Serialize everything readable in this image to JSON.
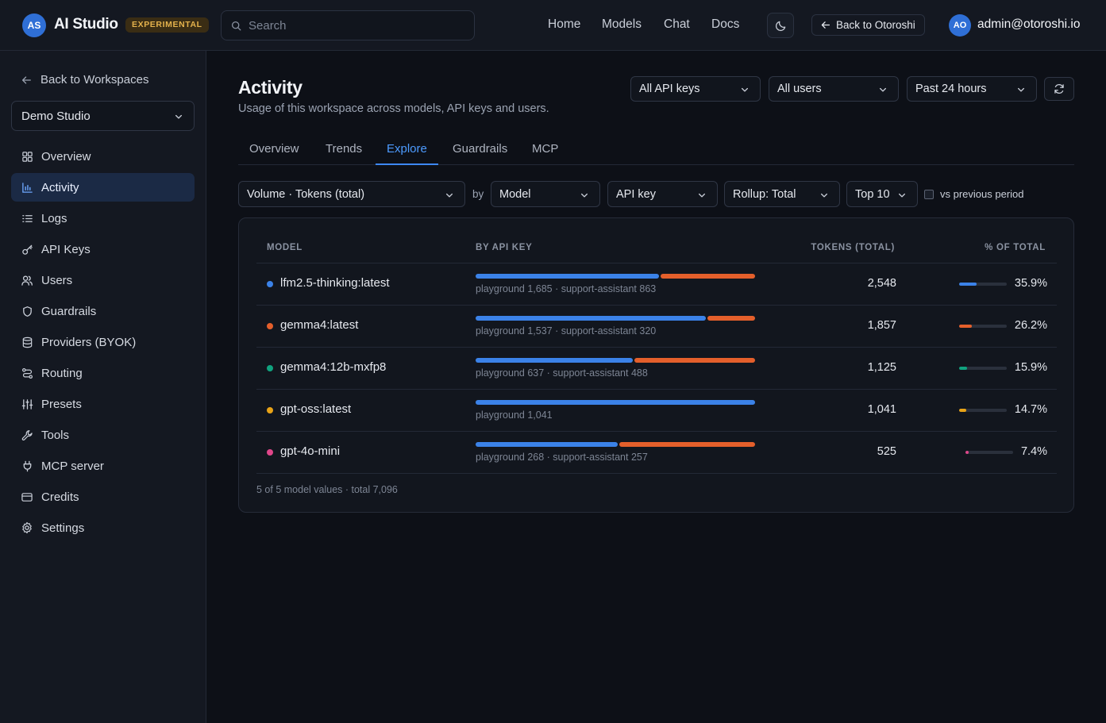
{
  "header": {
    "logo_initials": "AS",
    "app_name": "AI Studio",
    "badge": "EXPERIMENTAL",
    "search_placeholder": "Search",
    "nav": [
      "Home",
      "Models",
      "Chat",
      "Docs"
    ],
    "back_label": "Back to Otoroshi",
    "user_initials": "AO",
    "user_email": "admin@otoroshi.io"
  },
  "sidebar": {
    "back_label": "Back to Workspaces",
    "workspace": "Demo Studio",
    "items": [
      {
        "label": "Overview",
        "icon": "grid-icon"
      },
      {
        "label": "Activity",
        "icon": "bar-chart-icon",
        "active": true
      },
      {
        "label": "Logs",
        "icon": "list-icon"
      },
      {
        "label": "API Keys",
        "icon": "key-icon"
      },
      {
        "label": "Users",
        "icon": "users-icon"
      },
      {
        "label": "Guardrails",
        "icon": "shield-icon"
      },
      {
        "label": "Providers (BYOK)",
        "icon": "database-icon"
      },
      {
        "label": "Routing",
        "icon": "route-icon"
      },
      {
        "label": "Presets",
        "icon": "sliders-icon"
      },
      {
        "label": "Tools",
        "icon": "wrench-icon"
      },
      {
        "label": "MCP server",
        "icon": "plug-icon"
      },
      {
        "label": "Credits",
        "icon": "credit-card-icon"
      },
      {
        "label": "Settings",
        "icon": "gear-icon"
      }
    ]
  },
  "page": {
    "title": "Activity",
    "subtitle": "Usage of this workspace across models, API keys and users.",
    "filters": {
      "api_keys": "All API keys",
      "users": "All users",
      "range": "Past 24 hours"
    },
    "tabs": [
      "Overview",
      "Trends",
      "Explore",
      "Guardrails",
      "MCP"
    ],
    "active_tab": "Explore"
  },
  "controls": {
    "metric": "Volume · Tokens (total)",
    "by_label": "by",
    "group_by": "Model",
    "split_by": "API key",
    "rollup": "Rollup: Total",
    "top": "Top 10",
    "compare_label": "vs previous period"
  },
  "table": {
    "columns": {
      "model": "MODEL",
      "breakdown": "BY API KEY",
      "tokens": "TOKENS (TOTAL)",
      "pct": "% OF TOTAL"
    },
    "series_colors": {
      "playground": "#3b82e8",
      "support-assistant": "#e45f2b"
    },
    "rows": [
      {
        "model": "lfm2.5-thinking:latest",
        "color": "#3b82e8",
        "playground": 1685,
        "support_assistant": 863,
        "split_text": "playground 1,685 · support-assistant 863",
        "tokens": "2,548",
        "pct_value": 35.9,
        "pct": "35.9%"
      },
      {
        "model": "gemma4:latest",
        "color": "#e45f2b",
        "playground": 1537,
        "support_assistant": 320,
        "split_text": "playground 1,537 · support-assistant 320",
        "tokens": "1,857",
        "pct_value": 26.2,
        "pct": "26.2%"
      },
      {
        "model": "gemma4:12b-mxfp8",
        "color": "#10a37f",
        "playground": 637,
        "support_assistant": 488,
        "split_text": "playground 637 · support-assistant 488",
        "tokens": "1,125",
        "pct_value": 15.9,
        "pct": "15.9%"
      },
      {
        "model": "gpt-oss:latest",
        "color": "#e8a317",
        "playground": 1041,
        "support_assistant": 0,
        "split_text": "playground 1,041",
        "tokens": "1,041",
        "pct_value": 14.7,
        "pct": "14.7%"
      },
      {
        "model": "gpt-4o-mini",
        "color": "#e0468a",
        "playground": 268,
        "support_assistant": 257,
        "split_text": "playground 268 · support-assistant 257",
        "tokens": "525",
        "pct_value": 7.4,
        "pct": "7.4%"
      }
    ],
    "footer": "5 of 5 model values · total 7,096"
  }
}
